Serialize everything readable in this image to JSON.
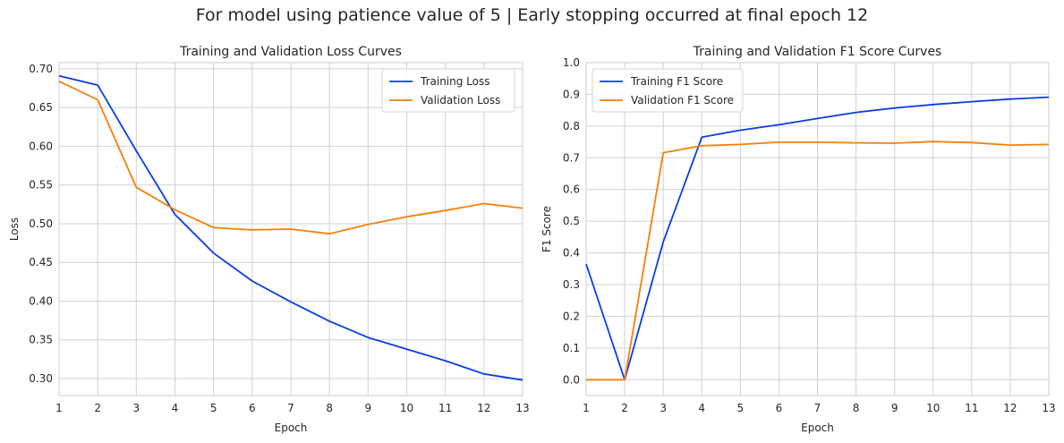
{
  "suptitle": "For model using patience value of 5 | Early stopping occurred at final epoch 12",
  "colors": {
    "training": "#0a3de6",
    "validation": "#f57f0d",
    "grid": "#d0d0d0",
    "axes": "#cccccc"
  },
  "chart_data": [
    {
      "type": "line",
      "title": "Training and Validation Loss Curves",
      "xlabel": "Epoch",
      "ylabel": "Loss",
      "xlim": [
        1,
        13
      ],
      "ylim": [
        0.278,
        0.708
      ],
      "xticks": [
        1,
        2,
        3,
        4,
        5,
        6,
        7,
        8,
        9,
        10,
        11,
        12,
        13
      ],
      "yticks": [
        "0.30",
        "0.35",
        "0.40",
        "0.45",
        "0.50",
        "0.55",
        "0.60",
        "0.65",
        "0.70"
      ],
      "grid": true,
      "legend": "top-right",
      "x": [
        1,
        2,
        3,
        4,
        5,
        6,
        7,
        8,
        9,
        10,
        11,
        12,
        13
      ],
      "series": [
        {
          "name": "Training Loss",
          "color": "#0a3de6",
          "values": [
            0.691,
            0.679,
            0.594,
            0.512,
            0.462,
            0.426,
            0.399,
            0.374,
            0.353,
            0.338,
            0.323,
            0.306,
            0.298
          ]
        },
        {
          "name": "Validation Loss",
          "color": "#f57f0d",
          "values": [
            0.684,
            0.66,
            0.547,
            0.518,
            0.495,
            0.492,
            0.493,
            0.487,
            0.499,
            0.509,
            0.517,
            0.526,
            0.52
          ]
        }
      ]
    },
    {
      "type": "line",
      "title": "Training and Validation F1 Score Curves",
      "xlabel": "Epoch",
      "ylabel": "F1 Score",
      "xlim": [
        1,
        13
      ],
      "ylim": [
        -0.05,
        1.0
      ],
      "xticks": [
        1,
        2,
        3,
        4,
        5,
        6,
        7,
        8,
        9,
        10,
        11,
        12,
        13
      ],
      "yticks": [
        "0.0",
        "0.1",
        "0.2",
        "0.3",
        "0.4",
        "0.5",
        "0.6",
        "0.7",
        "0.8",
        "0.9",
        "1.0"
      ],
      "grid": true,
      "legend": "top-left",
      "x": [
        1,
        2,
        3,
        4,
        5,
        6,
        7,
        8,
        9,
        10,
        11,
        12,
        13
      ],
      "series": [
        {
          "name": "Training F1 Score",
          "color": "#0a3de6",
          "values": [
            0.365,
            0.0,
            0.435,
            0.765,
            0.787,
            0.804,
            0.824,
            0.843,
            0.857,
            0.868,
            0.877,
            0.885,
            0.891
          ]
        },
        {
          "name": "Validation F1 Score",
          "color": "#f57f0d",
          "values": [
            0.0,
            0.0,
            0.716,
            0.738,
            0.742,
            0.749,
            0.749,
            0.747,
            0.746,
            0.751,
            0.748,
            0.74,
            0.742
          ]
        }
      ]
    }
  ]
}
